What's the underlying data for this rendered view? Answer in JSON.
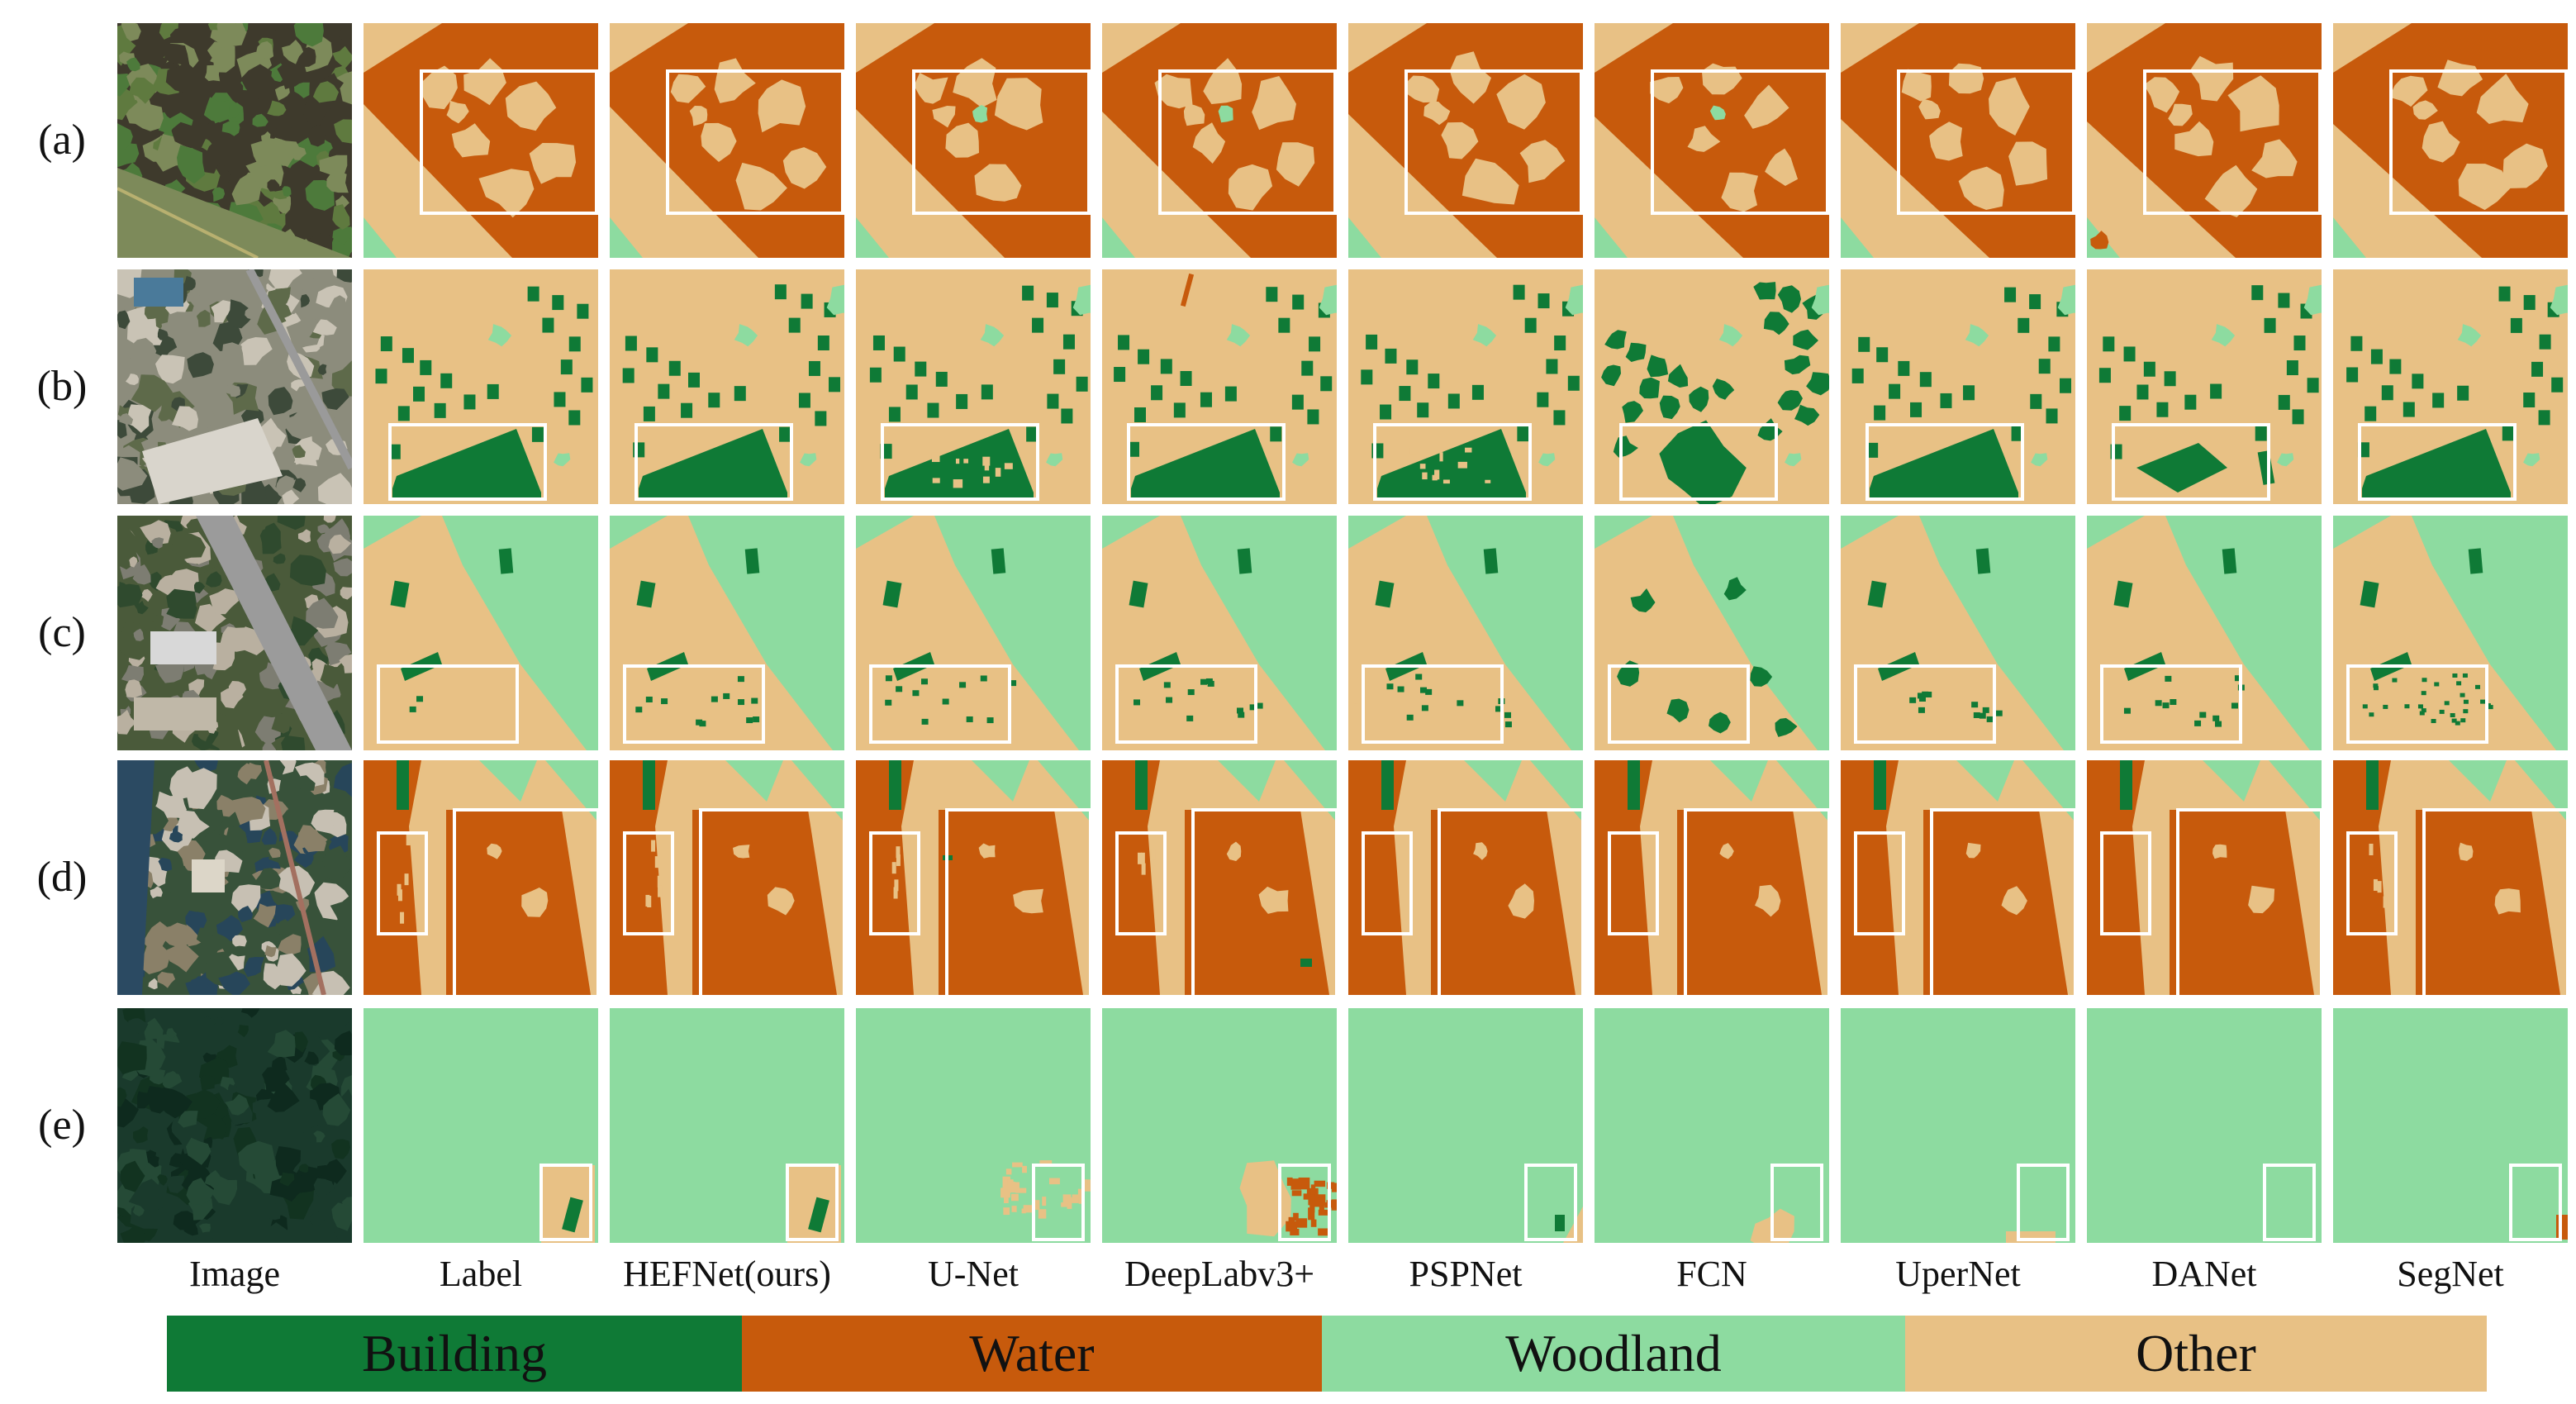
{
  "figure": {
    "row_labels": [
      "(a)",
      "(b)",
      "(c)",
      "(d)",
      "(e)"
    ],
    "column_labels": [
      "Image",
      "Label",
      "HEFNet(ours)",
      "U-Net",
      "DeepLabv3+",
      "PSPNet",
      "FCN",
      "UperNet",
      "DANet",
      "SegNet"
    ],
    "legend": [
      {
        "label": "Building",
        "color": "#0f7a36"
      },
      {
        "label": "Water",
        "color": "#c75a0c"
      },
      {
        "label": "Woodland",
        "color": "#8ddba0"
      },
      {
        "label": "Other",
        "color": "#e8c185"
      }
    ],
    "highlight_box_color": "#ffffff"
  }
}
